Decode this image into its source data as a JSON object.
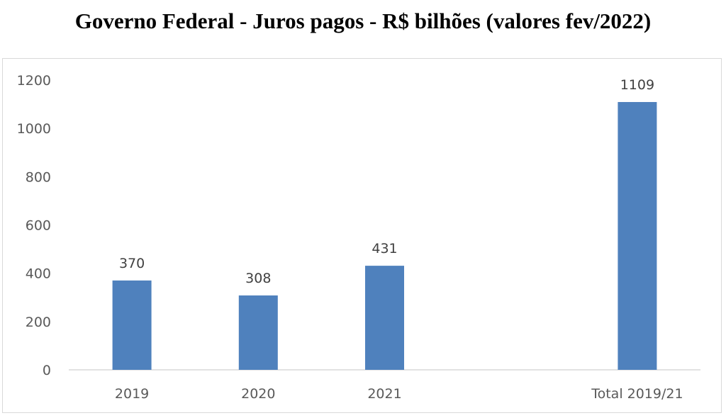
{
  "title": "Governo Federal - Juros pagos - R$ bilhões (valores fev/2022)",
  "chart_data": {
    "type": "bar",
    "categories": [
      "2019",
      "2020",
      "2021",
      "",
      "Total 2019/21"
    ],
    "values": [
      370,
      308,
      431,
      null,
      1109
    ],
    "data_labels": [
      "370",
      "308",
      "431",
      "",
      "1109"
    ],
    "title": "Governo Federal - Juros pagos - R$ bilhões (valores fev/2022)",
    "xlabel": "",
    "ylabel": "",
    "ylim": [
      0,
      1200
    ],
    "yticks": [
      0,
      200,
      400,
      600,
      800,
      1000,
      1200
    ],
    "grid": false,
    "legend": "none",
    "bar_color": "#4f81bd"
  }
}
